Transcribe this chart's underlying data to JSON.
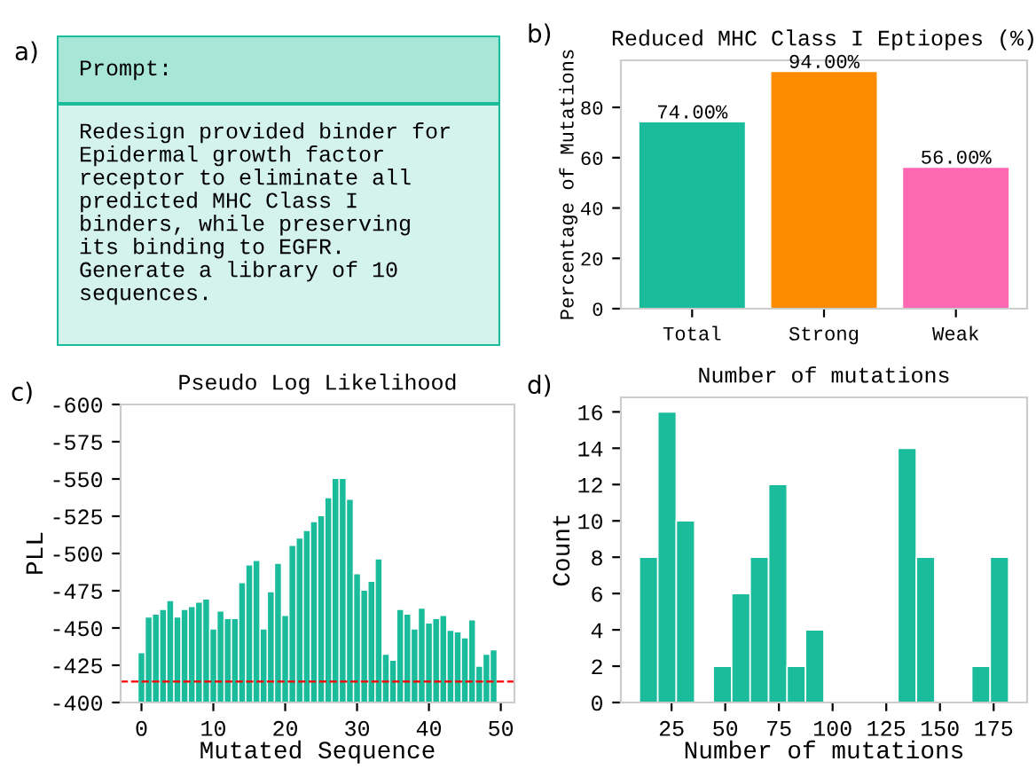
{
  "chart_data": [
    {
      "type": "other",
      "title": "Prompt:",
      "annotations": [
        "a)",
        "Redesign provided binder for\nEpidermal growth factor\nreceptor to eliminate all\npredicted MHC Class I\nbinders, while preserving\nits binding to EGFR.\nGenerate a library of 10\nsequences."
      ]
    },
    {
      "type": "bar",
      "title": "Reduced MHC Class I Eptiopes (%)",
      "ylabel": "Percentage of Mutations",
      "annotations": [
        "b)"
      ],
      "categories": [
        "Total",
        "Strong",
        "Weak"
      ],
      "values": [
        74,
        94,
        56
      ],
      "colors": [
        "#1abc9c",
        "#ff8c00",
        "#ff69b4"
      ],
      "value_labels": [
        "74.00%",
        "94.00%",
        "56.00%"
      ],
      "ylim": [
        0,
        98.7
      ],
      "yticks": [
        0,
        20,
        40,
        60,
        80
      ],
      "grid": false
    },
    {
      "type": "bar",
      "title": "Pseudo Log Likelihood",
      "xlabel": "Mutated Sequence",
      "ylabel": "PLL",
      "annotations": [
        "c)"
      ],
      "x": [
        0,
        1,
        2,
        3,
        4,
        5,
        6,
        7,
        8,
        9,
        10,
        11,
        12,
        13,
        14,
        15,
        16,
        17,
        18,
        19,
        20,
        21,
        22,
        23,
        24,
        25,
        26,
        27,
        28,
        29,
        30,
        31,
        32,
        33,
        34,
        35,
        36,
        37,
        38,
        39,
        40,
        41,
        42,
        43,
        44,
        45,
        46,
        47,
        48,
        49
      ],
      "values": [
        -433,
        -457,
        -459,
        -462,
        -468,
        -457,
        -462,
        -464,
        -467,
        -469,
        -449,
        -461,
        -456,
        -456,
        -480,
        -492,
        -495,
        -449,
        -474,
        -493,
        -458,
        -505,
        -510,
        -515,
        -521,
        -525,
        -537,
        -550,
        -550,
        -536,
        -486,
        -475,
        -481,
        -496,
        -432,
        -428,
        -462,
        -459,
        -449,
        -463,
        -453,
        -456,
        -458,
        -448,
        -447,
        -443,
        -455,
        -424,
        -432,
        -435
      ],
      "color": "#1abc9c",
      "xlim": [
        -2.9,
        51.9
      ],
      "xticks": [
        0,
        10,
        20,
        30,
        40,
        50
      ],
      "ylim": [
        -400,
        -600
      ],
      "yticks": [
        -400,
        -425,
        -450,
        -475,
        -500,
        -525,
        -550,
        -575,
        -600
      ],
      "ref_lines": [
        {
          "axis": "y",
          "value": -414,
          "color": "#ff0000",
          "line_style": "dashed"
        }
      ],
      "grid": false
    },
    {
      "type": "histogram",
      "title": "Number of mutations",
      "xlabel": "Number of mutations",
      "ylabel": "Count",
      "annotations": [
        "d)"
      ],
      "bins": [
        10,
        18.6,
        27.2,
        35.8,
        44.4,
        53,
        61.6,
        70.2,
        78.8,
        87.4,
        96,
        104.6,
        113.2,
        121.8,
        130.4,
        139,
        147.6,
        156.2,
        164.8,
        173.4,
        182
      ],
      "values": [
        8,
        16,
        10,
        0,
        2,
        6,
        8,
        12,
        2,
        4,
        0,
        0,
        0,
        0,
        14,
        8,
        0,
        0,
        2,
        8
      ],
      "color": "#1abc9c",
      "xlim": [
        1.4,
        190.6
      ],
      "xticks": [
        25,
        50,
        75,
        100,
        125,
        150,
        175
      ],
      "ylim": [
        0,
        16.8
      ],
      "yticks": [
        0,
        2,
        4,
        6,
        8,
        10,
        12,
        14,
        16
      ],
      "grid": false
    }
  ]
}
